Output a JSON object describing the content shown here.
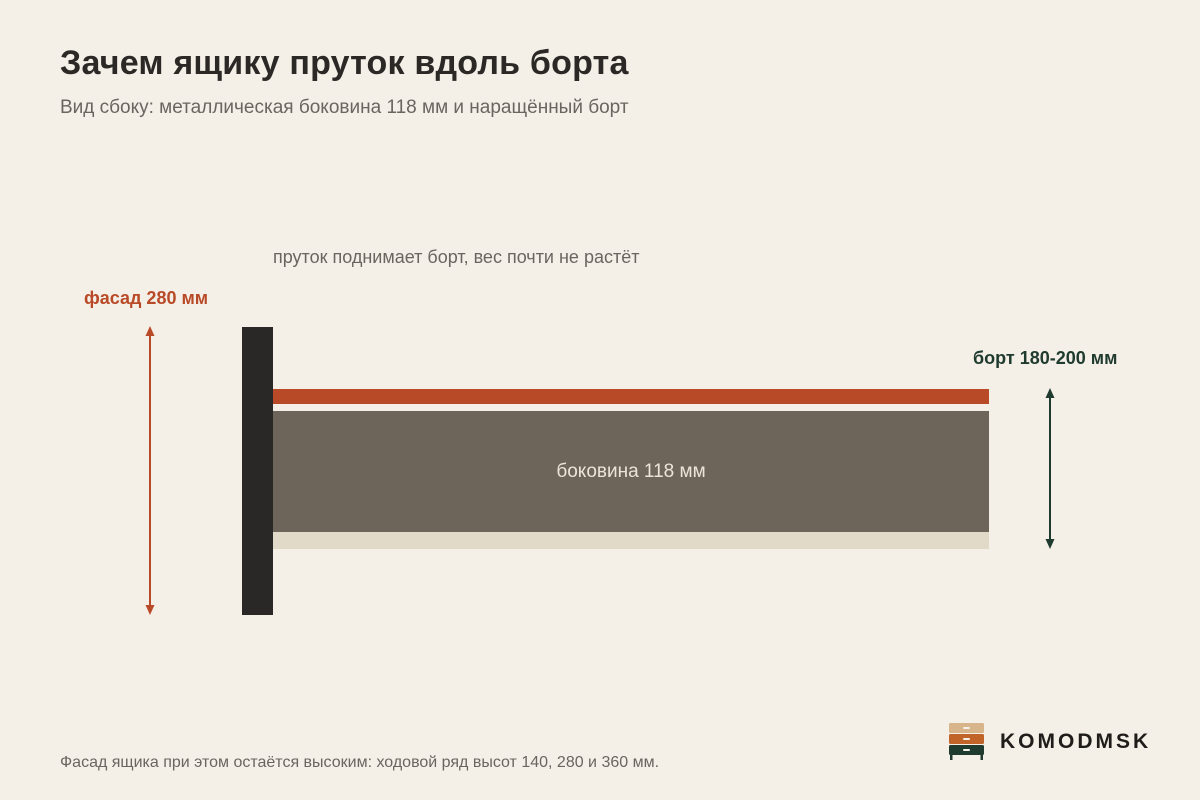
{
  "title": "Зачем ящику пруток вдоль борта",
  "subtitle": "Вид сбоку: металлическая боковина 118 мм и наращённый борт",
  "labels": {
    "rod_note": "пруток поднимает борт, вес почти не растёт",
    "facade": "фасад 280 мм",
    "bort": "борт 180-200 мм",
    "side": "боковина 118 мм"
  },
  "footnote": "Фасад ящика при этом остаётся высоким: ходовой ряд высот 140, 280 и 360 мм.",
  "brand": {
    "name": "KOMODMSK"
  },
  "colors": {
    "background": "#f4efe7",
    "facade_panel": "#2a2827",
    "rod": "#b94a27",
    "sidewall": "#6e655a",
    "bottom": "#e2dac8",
    "facade_accent": "#b94a27",
    "bort_accent": "#1f3a2e"
  }
}
